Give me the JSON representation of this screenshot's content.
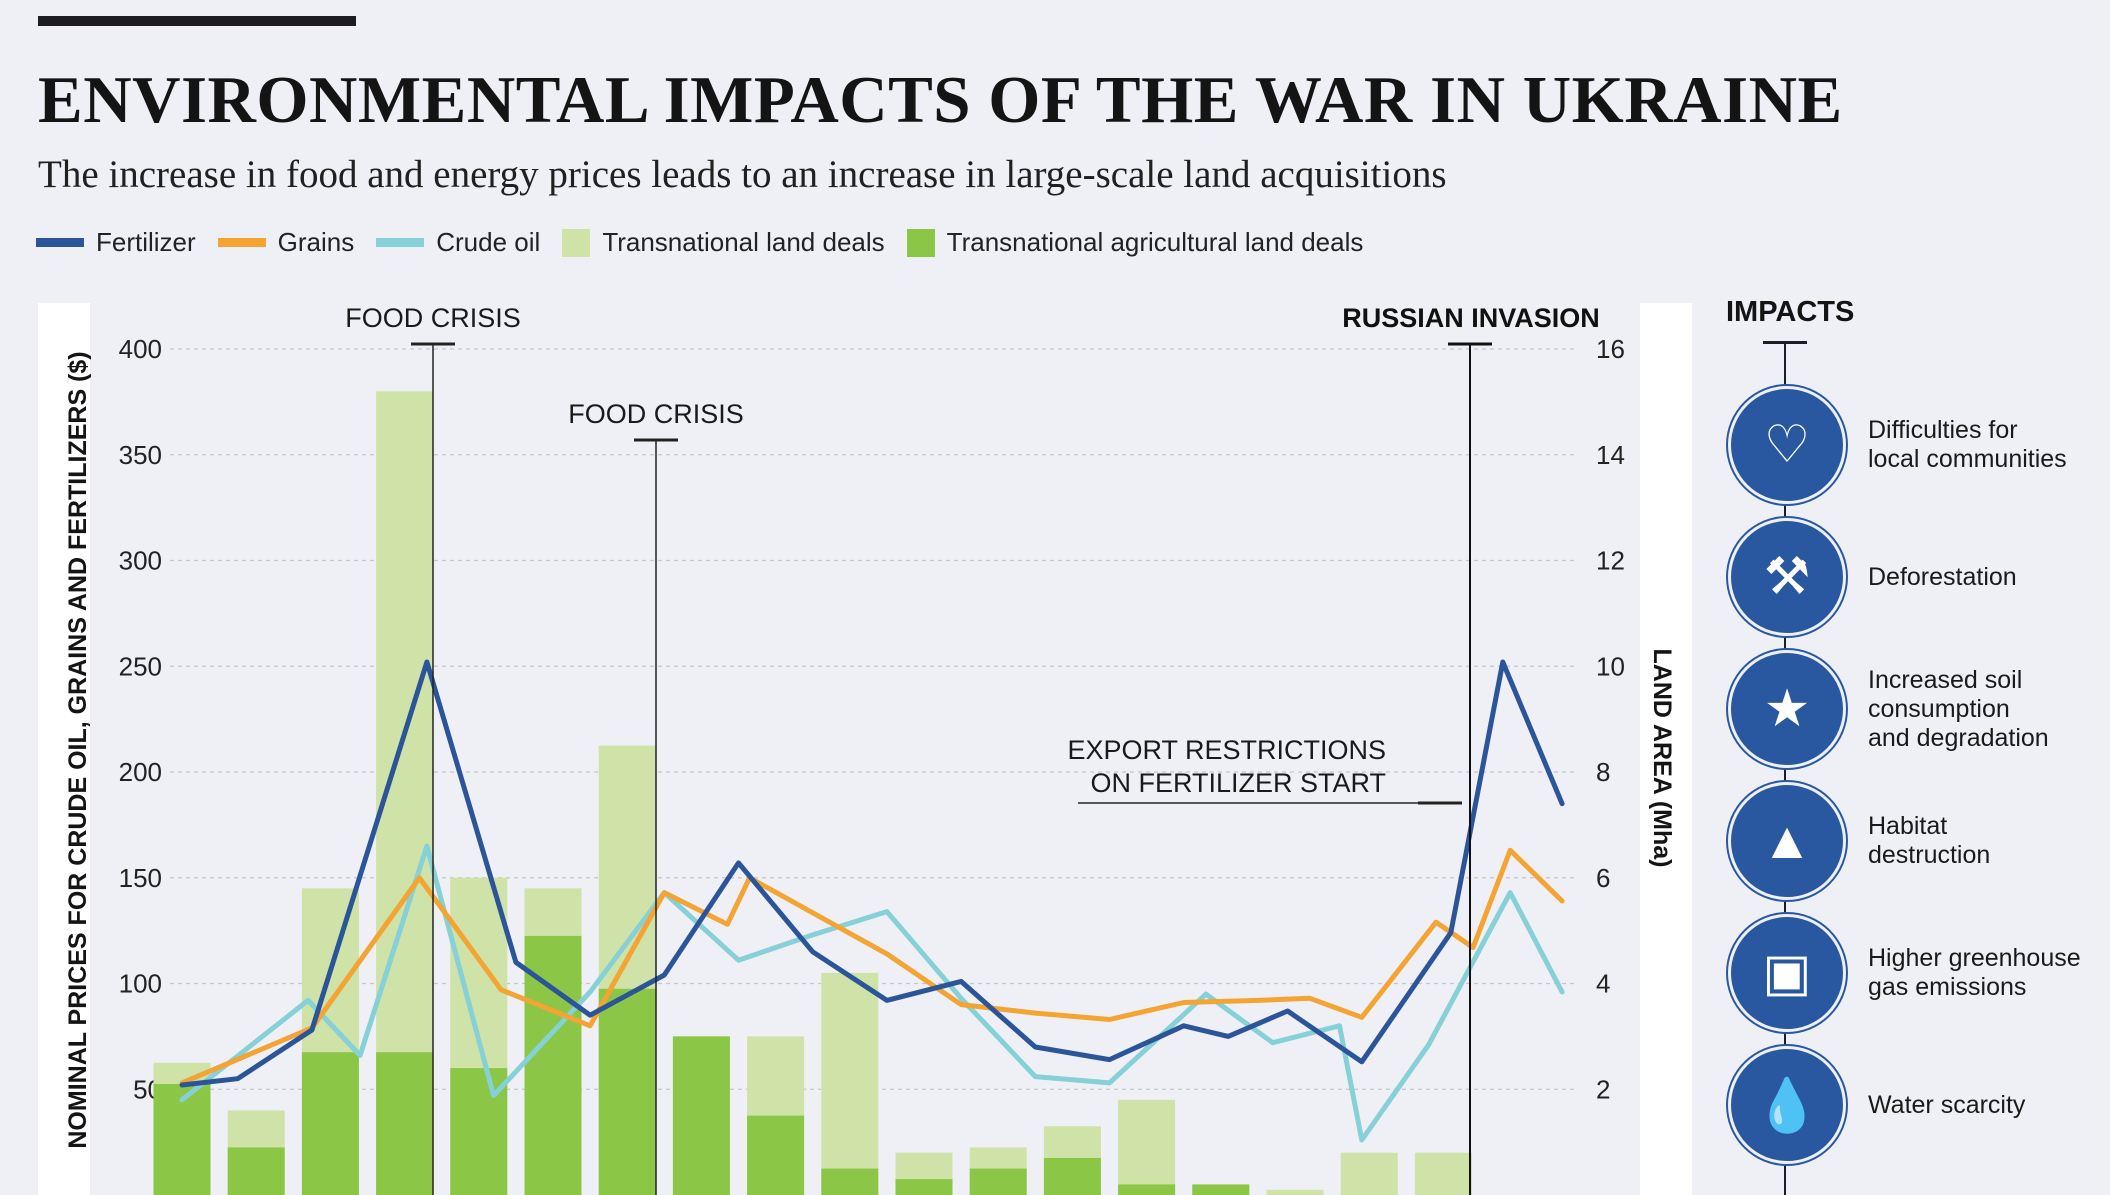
{
  "title": "ENVIRONMENTAL IMPACTS OF THE WAR IN UKRAINE",
  "subtitle": "The increase in food and energy prices leads to an increase in large-scale land acquisitions",
  "legend": [
    {
      "label": "Fertilizer",
      "color": "#2c5599",
      "kind": "line"
    },
    {
      "label": "Grains",
      "color": "#f3a433",
      "kind": "line"
    },
    {
      "label": "Crude oil",
      "color": "#86d0d8",
      "kind": "line"
    },
    {
      "label": "Transnational land deals",
      "color": "#cfe2a8",
      "kind": "box"
    },
    {
      "label": "Transnational agricultural land deals",
      "color": "#8cc646",
      "kind": "box"
    }
  ],
  "axes": {
    "left_label": "NOMINAL PRICES FOR CRUDE OIL, GRAINS AND FERTILIZERS ($)",
    "right_label": "LAND AREA (Mha)",
    "left_ticks": [
      "50",
      "100",
      "150",
      "200",
      "250",
      "300",
      "350",
      "400"
    ],
    "right_ticks": [
      "2",
      "4",
      "6",
      "8",
      "10",
      "12",
      "14",
      "16"
    ]
  },
  "annotations": {
    "food_crisis_1": "FOOD CRISIS",
    "food_crisis_2": "FOOD CRISIS",
    "russian_invasion": "RUSSIAN INVASION",
    "export_line1": "EXPORT RESTRICTIONS",
    "export_line2": "ON FERTILIZER START"
  },
  "impacts": {
    "title": "IMPACTS",
    "items": [
      {
        "label": "Difficulties for\nlocal communities",
        "icon": "hands-community-icon"
      },
      {
        "label": "Deforestation",
        "icon": "excavator-forest-icon"
      },
      {
        "label": "Increased soil\nconsumption\nand degradation",
        "icon": "cracked-soil-tree-icon"
      },
      {
        "label": "Habitat\ndestruction",
        "icon": "burning-trees-icon"
      },
      {
        "label": "Higher greenhouse\ngas emissions",
        "icon": "factory-emissions-icon"
      },
      {
        "label": "Water scarcity",
        "icon": "dripping-tap-icon"
      }
    ]
  },
  "chart_data": {
    "type": "bar",
    "y_left_range": [
      0,
      400
    ],
    "y_right_range": [
      0,
      16
    ],
    "grid": true,
    "bar_slots": 19,
    "series": [
      {
        "name": "Transnational land deals",
        "axis": "right",
        "kind": "bar",
        "values": [
          2.5,
          1.6,
          5.8,
          15.2,
          6.0,
          5.8,
          8.5,
          3.0,
          3.0,
          4.2,
          0.8,
          0.9,
          1.3,
          1.8,
          0.2,
          0.1,
          0.8,
          0.8,
          0
        ]
      },
      {
        "name": "Transnational agricultural land deals",
        "axis": "right",
        "kind": "bar",
        "values": [
          2.1,
          0.9,
          2.7,
          2.7,
          2.4,
          4.9,
          3.9,
          3.0,
          1.5,
          0.5,
          0.3,
          0.5,
          0.7,
          0.2,
          0.2,
          0,
          0,
          0,
          0
        ]
      },
      {
        "name": "Fertilizer",
        "axis": "left",
        "kind": "line",
        "points": [
          [
            0,
            52
          ],
          [
            0.75,
            55
          ],
          [
            1.75,
            78
          ],
          [
            3.3,
            252
          ],
          [
            4.5,
            110
          ],
          [
            5.5,
            85
          ],
          [
            6.5,
            104
          ],
          [
            7.5,
            157
          ],
          [
            8.5,
            115
          ],
          [
            9.5,
            92
          ],
          [
            10.5,
            101
          ],
          [
            11.5,
            70
          ],
          [
            12.5,
            64
          ],
          [
            13.5,
            80
          ],
          [
            14.1,
            75
          ],
          [
            14.9,
            87
          ],
          [
            15.9,
            63
          ],
          [
            17.1,
            124
          ],
          [
            17.8,
            252
          ],
          [
            18.6,
            185
          ]
        ]
      },
      {
        "name": "Grains",
        "axis": "left",
        "kind": "line",
        "points": [
          [
            0,
            53
          ],
          [
            1.75,
            79
          ],
          [
            3.2,
            150
          ],
          [
            4.3,
            97
          ],
          [
            5.5,
            80
          ],
          [
            6.5,
            143
          ],
          [
            7.35,
            128
          ],
          [
            7.65,
            150
          ],
          [
            9.5,
            114
          ],
          [
            10.5,
            90
          ],
          [
            11.5,
            86
          ],
          [
            12.5,
            83
          ],
          [
            13.5,
            91
          ],
          [
            14.5,
            92
          ],
          [
            15.2,
            93
          ],
          [
            15.9,
            84
          ],
          [
            16.9,
            129
          ],
          [
            17.4,
            117
          ],
          [
            17.9,
            163
          ],
          [
            18.6,
            139
          ]
        ]
      },
      {
        "name": "Crude oil",
        "axis": "left",
        "kind": "line",
        "points": [
          [
            0,
            45
          ],
          [
            1.7,
            92
          ],
          [
            2.4,
            66
          ],
          [
            3.3,
            165
          ],
          [
            4.2,
            47
          ],
          [
            5.5,
            96
          ],
          [
            6.5,
            143
          ],
          [
            7.5,
            111
          ],
          [
            8.5,
            123
          ],
          [
            9.5,
            134
          ],
          [
            10.5,
            93
          ],
          [
            11.5,
            56
          ],
          [
            12.5,
            53
          ],
          [
            13.8,
            95
          ],
          [
            14.7,
            72
          ],
          [
            15.6,
            80
          ],
          [
            15.9,
            26
          ],
          [
            16.8,
            71
          ],
          [
            17.9,
            143
          ],
          [
            18.6,
            96
          ]
        ]
      }
    ]
  }
}
